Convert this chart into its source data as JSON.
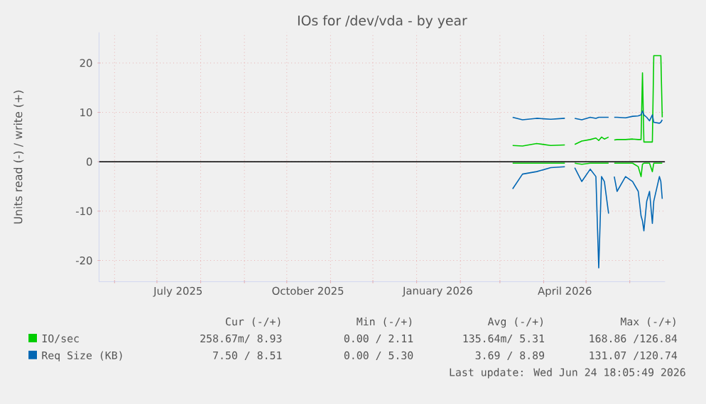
{
  "chart_data": {
    "type": "line",
    "title": "IOs for /dev/vda - by year",
    "ylabel": "Units read (-) / write (+)",
    "xlim": [
      "2025-05-21",
      "2026-06-26"
    ],
    "ylim": [
      -24.3,
      26.2
    ],
    "xticks": [
      {
        "value": "2025-06-01",
        "label": null
      },
      {
        "value": "2025-07-01",
        "label": null
      },
      {
        "value": "2025-07-16",
        "label": "July 2025"
      },
      {
        "value": "2025-08-01",
        "label": null
      },
      {
        "value": "2025-09-01",
        "label": null
      },
      {
        "value": "2025-10-01",
        "label": null
      },
      {
        "value": "2025-10-16",
        "label": "October 2025"
      },
      {
        "value": "2025-11-01",
        "label": null
      },
      {
        "value": "2025-12-01",
        "label": null
      },
      {
        "value": "2026-01-01",
        "label": null
      },
      {
        "value": "2026-01-16",
        "label": "January 2026"
      },
      {
        "value": "2026-02-01",
        "label": null
      },
      {
        "value": "2026-03-01",
        "label": null
      },
      {
        "value": "2026-04-01",
        "label": null
      },
      {
        "value": "2026-04-16",
        "label": "April 2026"
      },
      {
        "value": "2026-05-01",
        "label": null
      },
      {
        "value": "2026-06-01",
        "label": null
      }
    ],
    "yticks": [
      -20,
      -10,
      0,
      10,
      20
    ],
    "grid": true,
    "legend": "bottom",
    "marker": "none",
    "ref_lines": [
      {
        "axis": "y",
        "value": 0,
        "color": "#000000"
      }
    ],
    "series": [
      {
        "name": "IO/sec",
        "color": "#00cc00",
        "x": [
          "2026-03-10",
          "2026-03-17",
          "2026-03-27",
          "2026-04-06",
          "2026-04-16",
          "2026-04-19",
          "2026-04-23",
          "2026-04-28",
          "2026-05-04",
          "2026-05-08",
          "2026-05-10",
          "2026-05-12",
          "2026-05-14",
          "2026-05-17",
          "2026-05-19",
          "2026-05-21",
          "2026-05-23",
          "2026-05-29",
          "2026-06-03",
          "2026-06-07",
          "2026-06-09",
          "2026-06-10",
          "2026-06-11",
          "2026-06-13",
          "2026-06-15",
          "2026-06-17",
          "2026-06-18",
          "2026-06-22",
          "2026-06-23",
          "2026-06-24"
        ],
        "values": [
          3.3,
          3.2,
          3.7,
          3.3,
          3.4,
          null,
          3.5,
          4.2,
          4.5,
          4.8,
          4.3,
          5,
          4.6,
          5,
          null,
          4.4,
          4.5,
          4.5,
          4.6,
          4.5,
          4.5,
          18,
          4,
          4,
          4,
          4,
          21.5,
          21.5,
          21.5,
          9
        ]
      },
      {
        "color": "#00cc00",
        "x": [
          "2026-03-10",
          "2026-03-17",
          "2026-03-27",
          "2026-04-06",
          "2026-04-16",
          "2026-04-19",
          "2026-04-23",
          "2026-04-28",
          "2026-05-04",
          "2026-05-08",
          "2026-05-10",
          "2026-05-12",
          "2026-05-14",
          "2026-05-17",
          "2026-05-19",
          "2026-05-21",
          "2026-05-23",
          "2026-05-29",
          "2026-06-03",
          "2026-06-07",
          "2026-06-09",
          "2026-06-10",
          "2026-06-11",
          "2026-06-13",
          "2026-06-15",
          "2026-06-17",
          "2026-06-18",
          "2026-06-22",
          "2026-06-23",
          "2026-06-24"
        ],
        "values": [
          -0.3,
          -0.3,
          -0.3,
          -0.3,
          -0.3,
          null,
          -0.3,
          -0.5,
          -0.3,
          -0.3,
          -0.3,
          -0.3,
          -0.3,
          -0.3,
          null,
          -0.3,
          -0.3,
          -0.3,
          -0.3,
          -1,
          -3,
          -0.5,
          -0.3,
          -0.3,
          -0.3,
          -2,
          -0.3,
          -0.3,
          -0.3,
          -0.3
        ]
      },
      {
        "name": "Req Size (KB)",
        "color": "#0066b3",
        "x": [
          "2026-03-10",
          "2026-03-17",
          "2026-03-27",
          "2026-04-06",
          "2026-04-16",
          "2026-04-19",
          "2026-04-23",
          "2026-04-28",
          "2026-05-04",
          "2026-05-08",
          "2026-05-10",
          "2026-05-12",
          "2026-05-14",
          "2026-05-17",
          "2026-05-19",
          "2026-05-21",
          "2026-05-23",
          "2026-05-29",
          "2026-06-03",
          "2026-06-07",
          "2026-06-09",
          "2026-06-10",
          "2026-06-11",
          "2026-06-13",
          "2026-06-15",
          "2026-06-17",
          "2026-06-18",
          "2026-06-22",
          "2026-06-23",
          "2026-06-24"
        ],
        "values": [
          9,
          8.5,
          8.8,
          8.6,
          8.8,
          null,
          8.8,
          8.5,
          9,
          8.8,
          9,
          9,
          9,
          9,
          null,
          9,
          9,
          8.9,
          9.2,
          9.3,
          9.5,
          10.3,
          9.5,
          9,
          8.3,
          9.5,
          8,
          7.8,
          8,
          8.5
        ]
      },
      {
        "color": "#0066b3",
        "x": [
          "2026-03-10",
          "2026-03-17",
          "2026-03-27",
          "2026-04-06",
          "2026-04-16",
          "2026-04-19",
          "2026-04-23",
          "2026-04-28",
          "2026-05-04",
          "2026-05-08",
          "2026-05-10",
          "2026-05-12",
          "2026-05-14",
          "2026-05-17",
          "2026-05-19",
          "2026-05-21",
          "2026-05-23",
          "2026-05-29",
          "2026-06-03",
          "2026-06-07",
          "2026-06-09",
          "2026-06-10",
          "2026-06-11",
          "2026-06-13",
          "2026-06-15",
          "2026-06-17",
          "2026-06-18",
          "2026-06-22",
          "2026-06-23",
          "2026-06-24"
        ],
        "values": [
          -5.5,
          -2.5,
          -2,
          -1.2,
          -1,
          null,
          -1.2,
          -4,
          -1.5,
          -3,
          -21.5,
          -3,
          -4,
          -10.5,
          null,
          -3,
          -6,
          -3,
          -4,
          -6,
          -11,
          -12,
          -14,
          -8,
          -6,
          -12.5,
          -8,
          -3,
          -4,
          -7.5
        ]
      }
    ],
    "annotations": [
      "Cur (-/+)",
      "Min (-/+)",
      "Avg (-/+)",
      "Max (-/+)",
      "258.67m/ 8.93",
      "0.00 / 2.11",
      "135.64m/ 5.31",
      "168.86 /126.84",
      "7.50 / 8.51",
      "0.00 / 5.30",
      "3.69 / 8.89",
      "131.07 /120.74",
      "Last update: Wed Jun 24 18:05:49 2026"
    ]
  }
}
